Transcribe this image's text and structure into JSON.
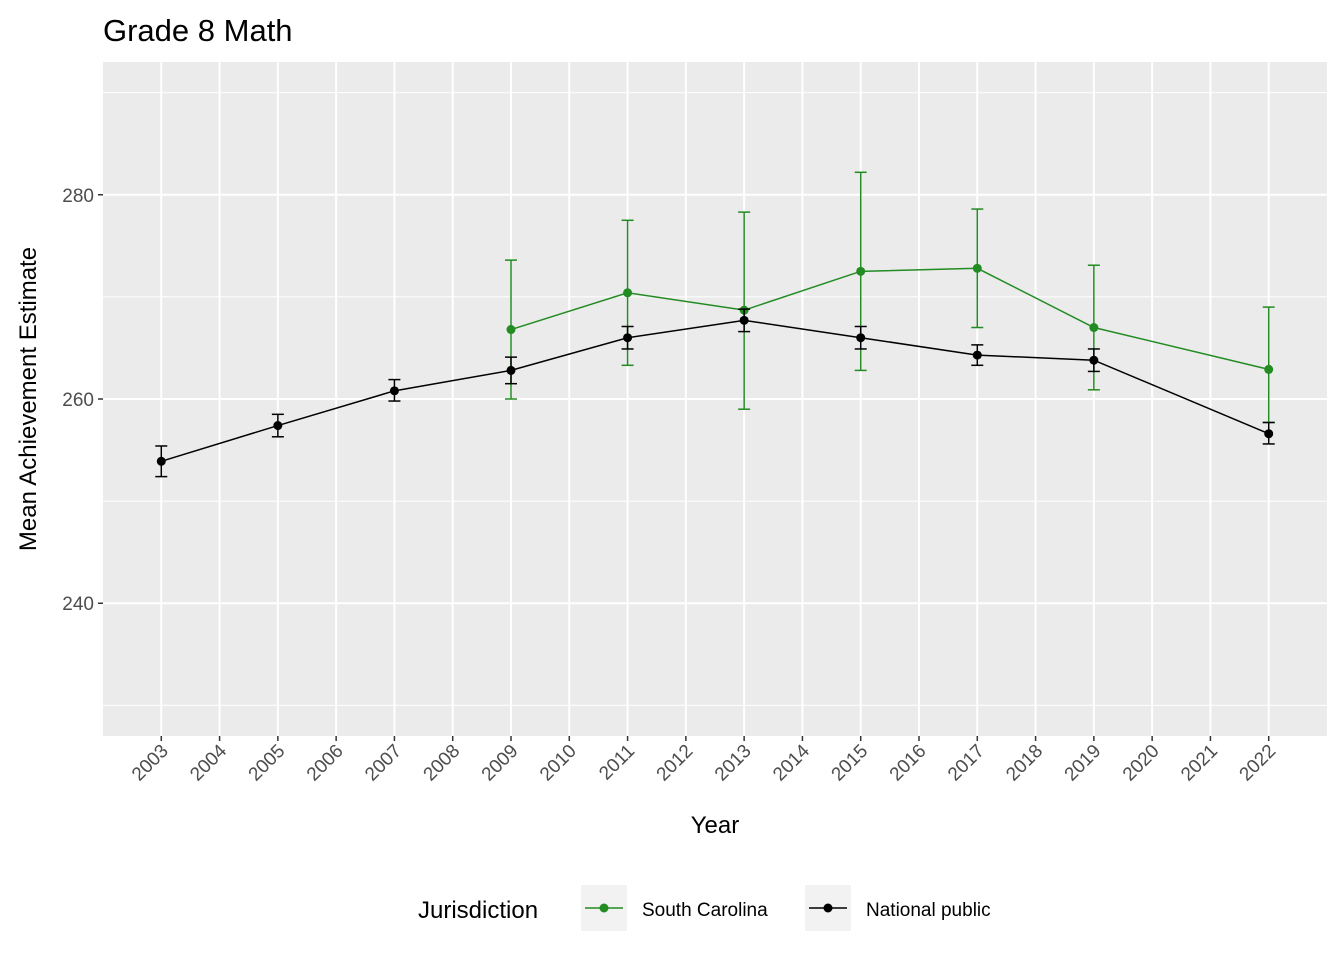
{
  "chart_data": {
    "type": "line",
    "title": "Grade 8 Math",
    "xlabel": "Year",
    "ylabel": "Mean Achievement Estimate",
    "x_ticks": [
      "2003",
      "2004",
      "2005",
      "2006",
      "2007",
      "2008",
      "2009",
      "2010",
      "2011",
      "2012",
      "2013",
      "2014",
      "2015",
      "2016",
      "2017",
      "2018",
      "2019",
      "2020",
      "2021",
      "2022"
    ],
    "y_ticks": [
      240,
      260,
      280
    ],
    "ylim": [
      227,
      293
    ],
    "xlim": [
      2002,
      2023
    ],
    "grid": true,
    "legend_title": "Jurisdiction",
    "legend_position": "bottom",
    "series": [
      {
        "name": "South Carolina",
        "color": "#228b22",
        "points": [
          {
            "x": 2009,
            "y": 266.8,
            "lo": 260.0,
            "hi": 273.6
          },
          {
            "x": 2011,
            "y": 270.4,
            "lo": 263.3,
            "hi": 277.5
          },
          {
            "x": 2013,
            "y": 268.7,
            "lo": 259.0,
            "hi": 278.3
          },
          {
            "x": 2015,
            "y": 272.5,
            "lo": 262.8,
            "hi": 282.2
          },
          {
            "x": 2017,
            "y": 272.8,
            "lo": 267.0,
            "hi": 278.6
          },
          {
            "x": 2019,
            "y": 267.0,
            "lo": 260.9,
            "hi": 273.1
          },
          {
            "x": 2022,
            "y": 262.9,
            "lo": 257.7,
            "hi": 269.0
          }
        ]
      },
      {
        "name": "National public",
        "color": "#000000",
        "points": [
          {
            "x": 2003,
            "y": 253.9,
            "lo": 252.4,
            "hi": 255.4
          },
          {
            "x": 2005,
            "y": 257.4,
            "lo": 256.3,
            "hi": 258.5
          },
          {
            "x": 2007,
            "y": 260.8,
            "lo": 259.8,
            "hi": 261.9
          },
          {
            "x": 2009,
            "y": 262.8,
            "lo": 261.5,
            "hi": 264.1
          },
          {
            "x": 2011,
            "y": 266.0,
            "lo": 264.9,
            "hi": 267.1
          },
          {
            "x": 2013,
            "y": 267.7,
            "lo": 266.6,
            "hi": 268.8
          },
          {
            "x": 2015,
            "y": 266.0,
            "lo": 264.9,
            "hi": 267.1
          },
          {
            "x": 2017,
            "y": 264.3,
            "lo": 263.3,
            "hi": 265.3
          },
          {
            "x": 2019,
            "y": 263.8,
            "lo": 262.7,
            "hi": 264.9
          },
          {
            "x": 2022,
            "y": 256.6,
            "lo": 255.6,
            "hi": 257.7
          }
        ]
      }
    ]
  }
}
